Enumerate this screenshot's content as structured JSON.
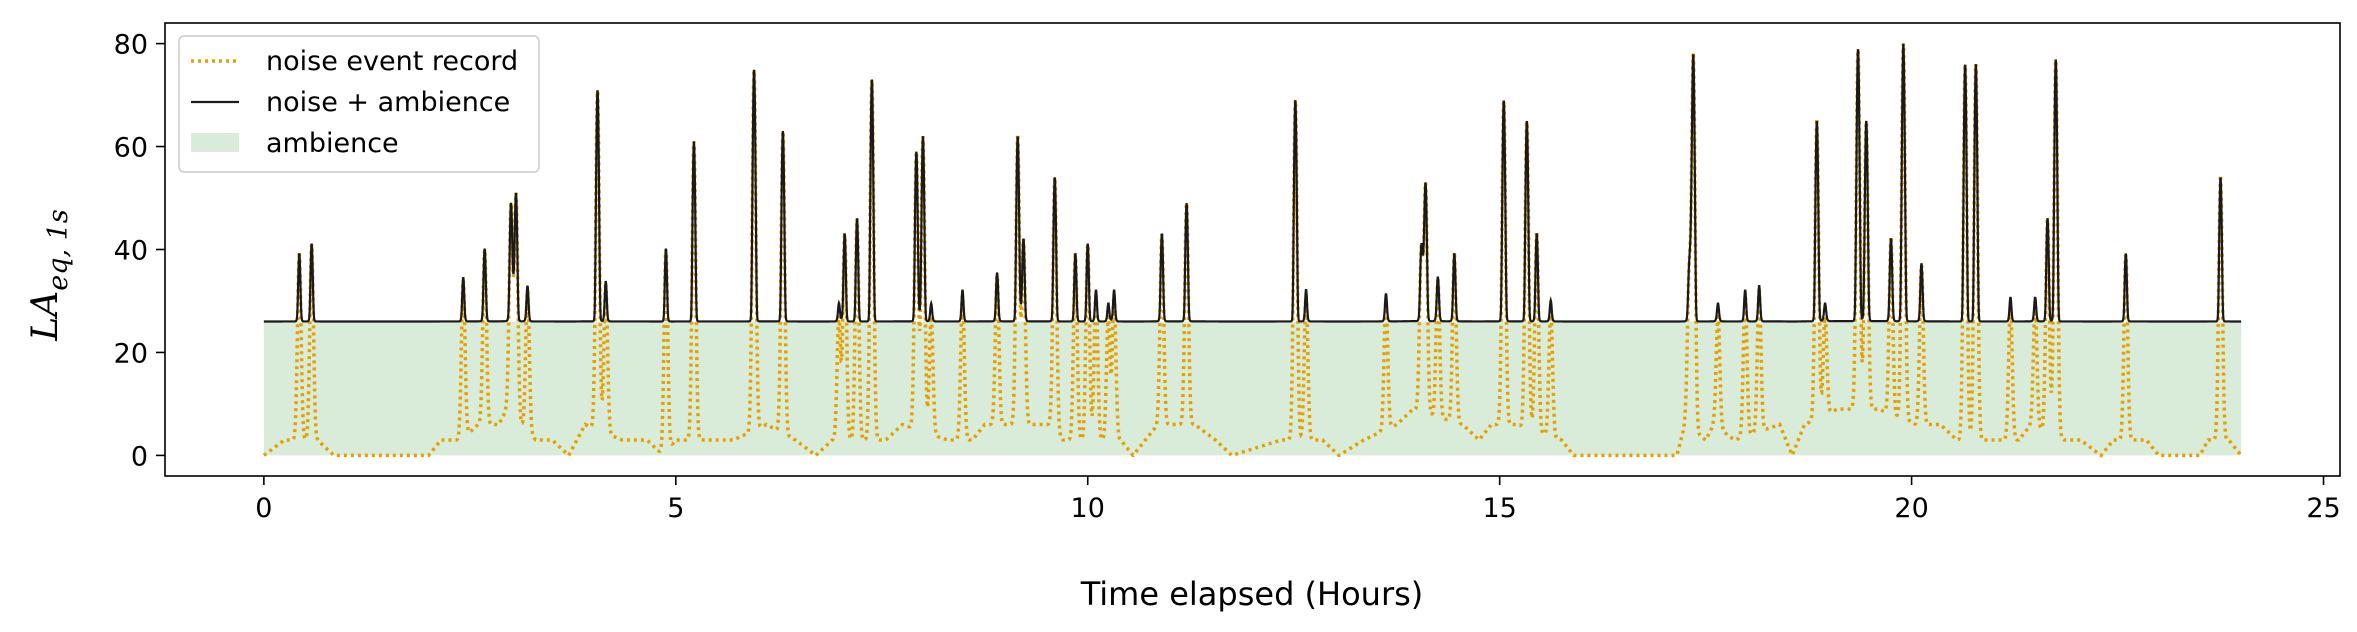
{
  "chart_data": {
    "type": "line",
    "xlabel": "Time elapsed (Hours)",
    "ylabel_main": "LA",
    "ylabel_sub": "eq, 1s",
    "xlim": [
      -1.2,
      25.2
    ],
    "ylim": [
      -4,
      84
    ],
    "xticks": [
      0,
      5,
      10,
      15,
      20,
      25
    ],
    "yticks": [
      0,
      20,
      40,
      60,
      80
    ],
    "grid": false,
    "legend_position": "top-left",
    "ambience_level": 26,
    "x_range": [
      0,
      24
    ],
    "series": [
      {
        "name": "noise event record",
        "color": "#E69F00",
        "style": "dotted"
      },
      {
        "name": "noise + ambience",
        "color": "#1a1a1a",
        "style": "solid"
      },
      {
        "name": "ambience",
        "color": "#d9ecd9",
        "style": "fill"
      }
    ],
    "events": [
      [
        0.43,
        39
      ],
      [
        0.58,
        41
      ],
      [
        2.42,
        34
      ],
      [
        2.68,
        40
      ],
      [
        3.0,
        49
      ],
      [
        3.06,
        51
      ],
      [
        3.2,
        32
      ],
      [
        4.05,
        71
      ],
      [
        4.15,
        33
      ],
      [
        4.88,
        40
      ],
      [
        5.22,
        61
      ],
      [
        5.95,
        75
      ],
      [
        6.3,
        63
      ],
      [
        6.98,
        27
      ],
      [
        7.05,
        43
      ],
      [
        7.2,
        46
      ],
      [
        7.38,
        73
      ],
      [
        7.92,
        59
      ],
      [
        8.0,
        62
      ],
      [
        8.1,
        27
      ],
      [
        8.48,
        31
      ],
      [
        8.9,
        35
      ],
      [
        9.15,
        62
      ],
      [
        9.22,
        42
      ],
      [
        9.6,
        54
      ],
      [
        9.85,
        39
      ],
      [
        10.0,
        41
      ],
      [
        10.1,
        31
      ],
      [
        10.25,
        27
      ],
      [
        10.32,
        31
      ],
      [
        10.9,
        43
      ],
      [
        11.2,
        49
      ],
      [
        12.52,
        69
      ],
      [
        12.65,
        31
      ],
      [
        13.62,
        30
      ],
      [
        14.05,
        40
      ],
      [
        14.1,
        53
      ],
      [
        14.25,
        34
      ],
      [
        14.45,
        39
      ],
      [
        15.05,
        69
      ],
      [
        15.33,
        65
      ],
      [
        15.45,
        43
      ],
      [
        15.62,
        28
      ],
      [
        17.3,
        34
      ],
      [
        17.35,
        78
      ],
      [
        17.65,
        27
      ],
      [
        17.98,
        31
      ],
      [
        18.15,
        32
      ],
      [
        18.85,
        65
      ],
      [
        18.95,
        27
      ],
      [
        19.35,
        79
      ],
      [
        19.45,
        65
      ],
      [
        19.75,
        42
      ],
      [
        19.9,
        80
      ],
      [
        20.12,
        37
      ],
      [
        20.65,
        76
      ],
      [
        20.78,
        76
      ],
      [
        21.2,
        29
      ],
      [
        21.5,
        29
      ],
      [
        21.65,
        46
      ],
      [
        21.75,
        77
      ],
      [
        22.6,
        39
      ],
      [
        23.75,
        54
      ]
    ],
    "baseline": [
      [
        0.0,
        0
      ],
      [
        0.25,
        3
      ],
      [
        0.4,
        3
      ],
      [
        0.65,
        3
      ],
      [
        0.85,
        0
      ],
      [
        2.0,
        0
      ],
      [
        2.15,
        3
      ],
      [
        2.4,
        3
      ],
      [
        2.6,
        6
      ],
      [
        2.85,
        6
      ],
      [
        2.95,
        9
      ],
      [
        3.3,
        3
      ],
      [
        3.5,
        3
      ],
      [
        3.7,
        0
      ],
      [
        3.9,
        6
      ],
      [
        4.35,
        3
      ],
      [
        4.65,
        3
      ],
      [
        4.85,
        0
      ],
      [
        5.0,
        3
      ],
      [
        5.4,
        3
      ],
      [
        5.7,
        3
      ],
      [
        6.1,
        6
      ],
      [
        6.45,
        3
      ],
      [
        6.7,
        0
      ],
      [
        6.9,
        3
      ],
      [
        7.55,
        3
      ],
      [
        7.75,
        6
      ],
      [
        8.3,
        3
      ],
      [
        8.6,
        3
      ],
      [
        8.75,
        6
      ],
      [
        9.3,
        6
      ],
      [
        9.55,
        6
      ],
      [
        9.7,
        3
      ],
      [
        10.4,
        3
      ],
      [
        10.55,
        0
      ],
      [
        10.7,
        3
      ],
      [
        10.85,
        6
      ],
      [
        11.3,
        6
      ],
      [
        11.55,
        3
      ],
      [
        11.75,
        0
      ],
      [
        12.35,
        3
      ],
      [
        12.85,
        3
      ],
      [
        13.05,
        0
      ],
      [
        13.35,
        3
      ],
      [
        13.75,
        6
      ],
      [
        13.95,
        9
      ],
      [
        14.55,
        6
      ],
      [
        14.75,
        3
      ],
      [
        14.9,
        6
      ],
      [
        15.2,
        6
      ],
      [
        15.75,
        3
      ],
      [
        15.9,
        0
      ],
      [
        17.15,
        0
      ],
      [
        17.25,
        6
      ],
      [
        17.5,
        3
      ],
      [
        17.6,
        6
      ],
      [
        17.85,
        3
      ],
      [
        18.4,
        6
      ],
      [
        18.55,
        0
      ],
      [
        18.7,
        6
      ],
      [
        19.1,
        9
      ],
      [
        19.25,
        9
      ],
      [
        19.6,
        9
      ],
      [
        20.05,
        6
      ],
      [
        20.35,
        6
      ],
      [
        20.55,
        3
      ],
      [
        21.0,
        3
      ],
      [
        21.3,
        3
      ],
      [
        21.45,
        6
      ],
      [
        21.85,
        3
      ],
      [
        22.05,
        3
      ],
      [
        22.3,
        0
      ],
      [
        22.45,
        3
      ],
      [
        22.85,
        3
      ],
      [
        23.0,
        0
      ],
      [
        23.5,
        0
      ],
      [
        23.6,
        3
      ],
      [
        23.85,
        3
      ],
      [
        24.0,
        0
      ]
    ]
  }
}
